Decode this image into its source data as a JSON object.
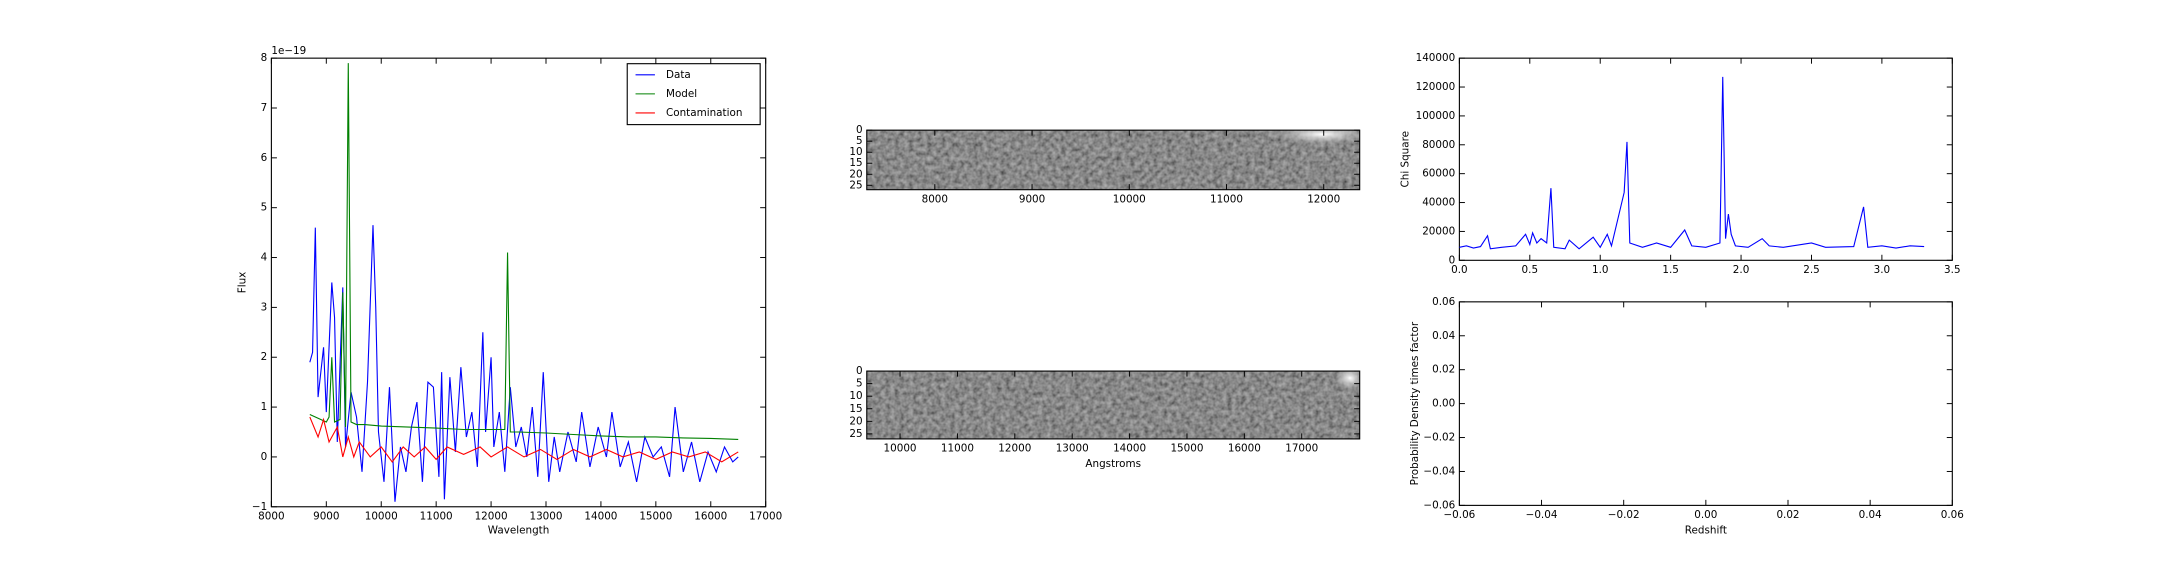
{
  "chart_data": [
    {
      "type": "line",
      "xlabel": "Wavelength",
      "ylabel": "Flux",
      "offset_label": "1e−19",
      "legend": "upper right",
      "xlim": [
        8000,
        17000
      ],
      "ylim": [
        -1,
        8
      ],
      "xticks": [
        8000,
        9000,
        10000,
        11000,
        12000,
        13000,
        14000,
        15000,
        16000,
        17000
      ],
      "yticks": [
        {
          "value": -1,
          "label": "−1"
        },
        0,
        1,
        2,
        3,
        4,
        5,
        6,
        7,
        8
      ],
      "series": [
        {
          "name": "Data",
          "color": "#0000ff",
          "x": [
            8700,
            8750,
            8800,
            8850,
            8950,
            9000,
            9100,
            9150,
            9200,
            9300,
            9350,
            9450,
            9550,
            9650,
            9750,
            9850,
            9900,
            9950,
            10050,
            10150,
            10250,
            10350,
            10450,
            10550,
            10650,
            10750,
            10850,
            10950,
            11050,
            11100,
            11150,
            11250,
            11350,
            11450,
            11550,
            11650,
            11750,
            11850,
            11900,
            12000,
            12050,
            12150,
            12250,
            12350,
            12450,
            12550,
            12650,
            12750,
            12850,
            12950,
            13050,
            13150,
            13250,
            13400,
            13550,
            13650,
            13800,
            13950,
            14100,
            14200,
            14350,
            14500,
            14650,
            14800,
            14950,
            15100,
            15250,
            15350,
            15500,
            15650,
            15800,
            15950,
            16100,
            16250,
            16400,
            16500
          ],
          "values": [
            1.9,
            2.1,
            4.6,
            1.2,
            2.2,
            0.9,
            3.5,
            2.8,
            0.3,
            3.4,
            0.2,
            1.3,
            0.8,
            -0.3,
            1.5,
            4.65,
            3.0,
            0.5,
            -0.5,
            1.4,
            -0.9,
            0.2,
            -0.3,
            0.6,
            1.1,
            -0.5,
            1.5,
            1.4,
            -0.4,
            1.7,
            -0.85,
            1.6,
            0.1,
            1.8,
            0.4,
            0.9,
            -0.2,
            2.5,
            0.5,
            2.0,
            0.2,
            0.9,
            -0.3,
            1.4,
            0.2,
            0.6,
            0.0,
            1.0,
            -0.4,
            1.7,
            -0.5,
            0.4,
            -0.3,
            0.5,
            -0.1,
            0.9,
            -0.2,
            0.6,
            0.0,
            0.9,
            -0.2,
            0.3,
            -0.5,
            0.4,
            0.0,
            0.2,
            -0.4,
            1.0,
            -0.3,
            0.3,
            -0.5,
            0.1,
            -0.3,
            0.2,
            -0.1,
            0.0
          ]
        },
        {
          "name": "Model",
          "color": "#008000",
          "x": [
            8700,
            8800,
            8900,
            9000,
            9050,
            9100,
            9150,
            9250,
            9300,
            9350,
            9400,
            9450,
            9550,
            9700,
            10000,
            10500,
            11000,
            11500,
            12000,
            12250,
            12300,
            12350,
            12500,
            13000,
            13500,
            14000,
            14500,
            15000,
            15500,
            16000,
            16500
          ],
          "values": [
            0.85,
            0.8,
            0.75,
            0.7,
            0.8,
            2.0,
            0.7,
            0.75,
            3.3,
            0.6,
            7.9,
            0.7,
            0.65,
            0.65,
            0.62,
            0.6,
            0.58,
            0.55,
            0.55,
            0.55,
            4.1,
            0.5,
            0.5,
            0.48,
            0.45,
            0.42,
            0.4,
            0.4,
            0.38,
            0.37,
            0.35
          ]
        },
        {
          "name": "Contamination",
          "color": "#ff0000",
          "x": [
            8700,
            8850,
            8950,
            9050,
            9200,
            9300,
            9400,
            9500,
            9600,
            9800,
            10000,
            10200,
            10400,
            10600,
            10800,
            11000,
            11200,
            11500,
            11800,
            12000,
            12300,
            12600,
            12900,
            13200,
            13500,
            13800,
            14100,
            14400,
            14700,
            15000,
            15300,
            15600,
            15900,
            16200,
            16500
          ],
          "values": [
            0.8,
            0.4,
            0.75,
            0.3,
            0.6,
            0.0,
            0.4,
            0.0,
            0.3,
            0.0,
            0.2,
            -0.1,
            0.2,
            0.0,
            0.2,
            -0.05,
            0.2,
            0.05,
            0.2,
            0.0,
            0.2,
            0.0,
            0.15,
            -0.05,
            0.15,
            0.0,
            0.15,
            0.0,
            0.1,
            -0.05,
            0.1,
            0.0,
            0.1,
            -0.1,
            0.1
          ]
        }
      ]
    },
    {
      "type": "image",
      "xlim": [
        7300,
        12370
      ],
      "ylim": [
        27,
        0
      ],
      "xticks": [
        8000,
        9000,
        10000,
        11000,
        12000
      ],
      "yticks": [
        0,
        5,
        10,
        15,
        20,
        25
      ]
    },
    {
      "type": "image",
      "xlabel": "Angstroms",
      "xlim": [
        9420,
        18010
      ],
      "ylim": [
        27,
        0
      ],
      "xticks": [
        10000,
        11000,
        12000,
        13000,
        14000,
        15000,
        16000,
        17000
      ],
      "yticks": [
        0,
        5,
        10,
        15,
        20,
        25
      ]
    },
    {
      "type": "line",
      "ylabel": "Chi Square",
      "xlim": [
        0,
        3.5
      ],
      "ylim": [
        0,
        140000
      ],
      "xticks": [
        {
          "value": 0,
          "label": "0.0"
        },
        0.5,
        {
          "value": 1,
          "label": "1.0"
        },
        1.5,
        {
          "value": 2,
          "label": "2.0"
        },
        2.5,
        {
          "value": 3,
          "label": "3.0"
        },
        3.5
      ],
      "yticks": [
        0,
        20000,
        40000,
        60000,
        80000,
        100000,
        120000,
        140000
      ],
      "series": [
        {
          "color": "#0000ff",
          "x": [
            0.0,
            0.05,
            0.1,
            0.15,
            0.2,
            0.22,
            0.3,
            0.4,
            0.47,
            0.5,
            0.52,
            0.55,
            0.58,
            0.62,
            0.65,
            0.67,
            0.75,
            0.78,
            0.85,
            0.95,
            1.0,
            1.05,
            1.08,
            1.17,
            1.19,
            1.21,
            1.3,
            1.4,
            1.5,
            1.6,
            1.65,
            1.75,
            1.85,
            1.87,
            1.89,
            1.91,
            1.93,
            1.96,
            2.05,
            2.15,
            2.2,
            2.3,
            2.5,
            2.6,
            2.8,
            2.87,
            2.9,
            3.0,
            3.1,
            3.2,
            3.3
          ],
          "values": [
            9000,
            10000,
            8500,
            9500,
            17000,
            8000,
            9000,
            10000,
            18000,
            11000,
            19000,
            12000,
            15000,
            12000,
            50000,
            9000,
            8000,
            14000,
            8000,
            16000,
            9000,
            18000,
            10000,
            47000,
            82000,
            12000,
            9000,
            12000,
            9000,
            21000,
            10000,
            9000,
            12000,
            127000,
            15000,
            32000,
            18000,
            10000,
            9000,
            15000,
            10000,
            9000,
            12000,
            9000,
            9500,
            37000,
            9000,
            10000,
            8500,
            10000,
            9500
          ]
        }
      ]
    },
    {
      "type": "line",
      "xlabel": "Redshift",
      "ylabel": "Probability Density times factor",
      "xlim": [
        -0.06,
        0.06
      ],
      "ylim": [
        -0.06,
        0.06
      ],
      "xticks": [
        {
          "value": -0.06,
          "label": "−0.06"
        },
        {
          "value": -0.04,
          "label": "−0.04"
        },
        {
          "value": -0.02,
          "label": "−0.02"
        },
        {
          "value": 0,
          "label": "0.00"
        },
        0.02,
        0.04,
        0.06
      ],
      "yticks": [
        {
          "value": -0.06,
          "label": "−0.06"
        },
        {
          "value": -0.04,
          "label": "−0.04"
        },
        {
          "value": -0.02,
          "label": "−0.02"
        },
        {
          "value": 0,
          "label": "0.00"
        },
        0.02,
        0.04,
        0.06
      ],
      "series": []
    }
  ]
}
